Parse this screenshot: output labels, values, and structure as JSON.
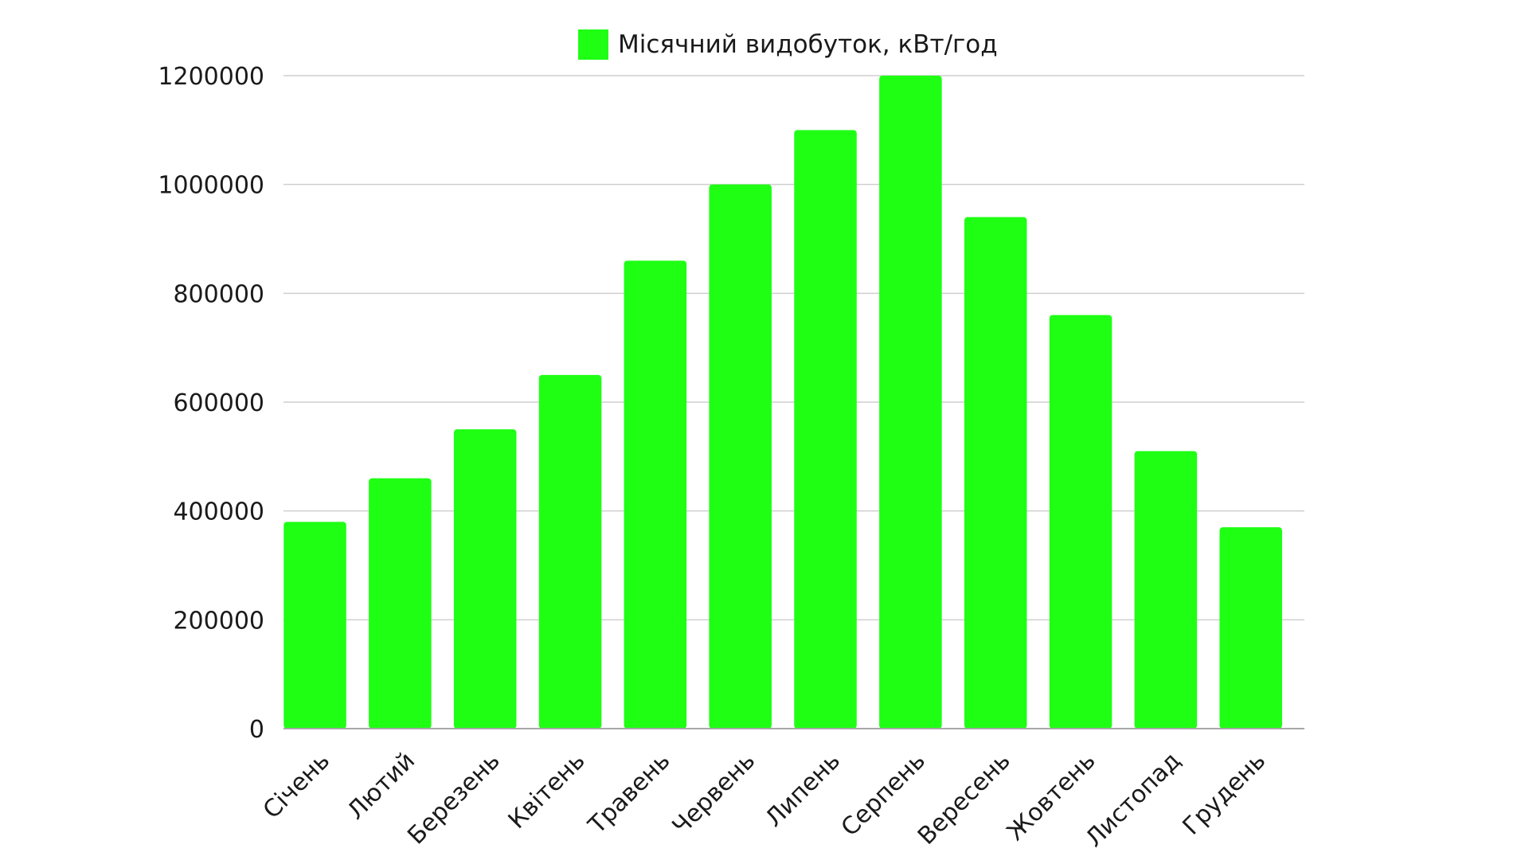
{
  "chart_data": {
    "type": "bar",
    "legend": {
      "label": "Місячний видобуток, кВт/год",
      "position": "top-center"
    },
    "categories": [
      "Січень",
      "Лютий",
      "Березень",
      "Квітень",
      "Травень",
      "Червень",
      "Липень",
      "Серпень",
      "Вересень",
      "Жовтень",
      "Листопад",
      "Грудень"
    ],
    "series": [
      {
        "name": "Місячний видобуток, кВт/год",
        "color": "#1eff14",
        "values": [
          380000,
          460000,
          550000,
          650000,
          860000,
          1000000,
          1100000,
          1200000,
          940000,
          760000,
          510000,
          370000
        ]
      }
    ],
    "ylim": [
      0,
      1200000
    ],
    "yticks": [
      "0",
      "200000",
      "400000",
      "600000",
      "800000",
      "1000000",
      "1200000"
    ],
    "grid": true,
    "category_label_rotation": "-45deg"
  }
}
